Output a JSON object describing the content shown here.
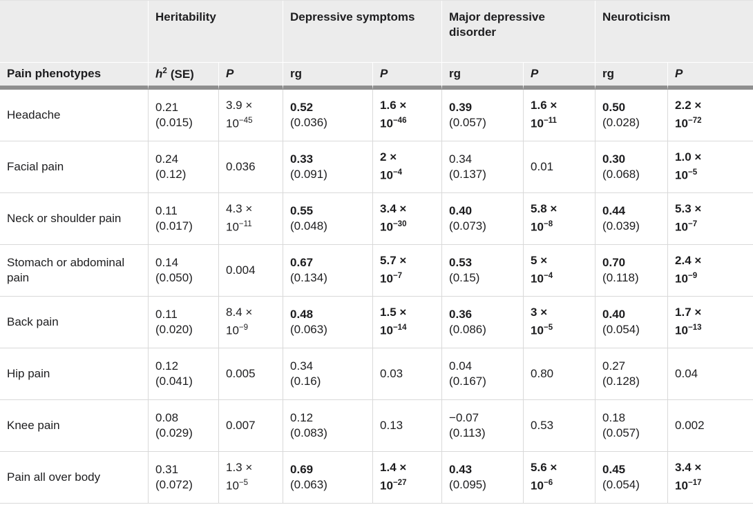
{
  "formatting": {
    "times_symbol": "×",
    "power_base": "10"
  },
  "table": {
    "column_groups": [
      {
        "label": "Heritability"
      },
      {
        "label": "Depressive symptoms"
      },
      {
        "label": "Major depressive disorder"
      },
      {
        "label": "Neuroticism"
      }
    ],
    "header": {
      "phenotype_col": "Pain phenotypes",
      "h2_base": "h",
      "h2_sup": "2",
      "h2_suffix": "(SE)",
      "p_label": "P",
      "rg_label": "rg"
    },
    "rows": [
      {
        "phenotype": "Headache",
        "cells": [
          {
            "type": "est",
            "value": "0.21",
            "se": "(0.015)",
            "bold": false
          },
          {
            "type": "p_sci",
            "mantissa": "3.9",
            "exponent": "−45",
            "bold": false
          },
          {
            "type": "est",
            "value": "0.52",
            "se": "(0.036)",
            "bold": true
          },
          {
            "type": "p_sci",
            "mantissa": "1.6",
            "exponent": "−46",
            "bold": true
          },
          {
            "type": "est",
            "value": "0.39",
            "se": "(0.057)",
            "bold": true
          },
          {
            "type": "p_sci",
            "mantissa": "1.6",
            "exponent": "−11",
            "bold": true
          },
          {
            "type": "est",
            "value": "0.50",
            "se": "(0.028)",
            "bold": true
          },
          {
            "type": "p_sci",
            "mantissa": "2.2",
            "exponent": "−72",
            "bold": true
          }
        ]
      },
      {
        "phenotype": "Facial pain",
        "cells": [
          {
            "type": "est",
            "value": "0.24",
            "se": "(0.12)",
            "bold": false
          },
          {
            "type": "p",
            "value": "0.036",
            "bold": false
          },
          {
            "type": "est",
            "value": "0.33",
            "se": "(0.091)",
            "bold": true
          },
          {
            "type": "p_sci",
            "mantissa": "2",
            "exponent": "−4",
            "bold": true
          },
          {
            "type": "est",
            "value": "0.34",
            "se": "(0.137)",
            "bold": false
          },
          {
            "type": "p",
            "value": "0.01",
            "bold": false
          },
          {
            "type": "est",
            "value": "0.30",
            "se": "(0.068)",
            "bold": true
          },
          {
            "type": "p_sci",
            "mantissa": "1.0",
            "exponent": "−5",
            "bold": true
          }
        ]
      },
      {
        "phenotype": "Neck or shoulder pain",
        "cells": [
          {
            "type": "est",
            "value": "0.11",
            "se": "(0.017)",
            "bold": false
          },
          {
            "type": "p_sci",
            "mantissa": "4.3",
            "exponent": "−11",
            "bold": false
          },
          {
            "type": "est",
            "value": "0.55",
            "se": "(0.048)",
            "bold": true
          },
          {
            "type": "p_sci",
            "mantissa": "3.4",
            "exponent": "−30",
            "bold": true
          },
          {
            "type": "est",
            "value": "0.40",
            "se": "(0.073)",
            "bold": true
          },
          {
            "type": "p_sci",
            "mantissa": "5.8",
            "exponent": "−8",
            "bold": true
          },
          {
            "type": "est",
            "value": "0.44",
            "se": "(0.039)",
            "bold": true
          },
          {
            "type": "p_sci",
            "mantissa": "5.3",
            "exponent": "−7",
            "bold": true
          }
        ]
      },
      {
        "phenotype": "Stomach or abdominal pain",
        "cells": [
          {
            "type": "est",
            "value": "0.14",
            "se": "(0.050)",
            "bold": false
          },
          {
            "type": "p",
            "value": "0.004",
            "bold": false
          },
          {
            "type": "est",
            "value": "0.67",
            "se": "(0.134)",
            "bold": true
          },
          {
            "type": "p_sci",
            "mantissa": "5.7",
            "exponent": "−7",
            "bold": true
          },
          {
            "type": "est",
            "value": "0.53",
            "se": "(0.15)",
            "bold": true
          },
          {
            "type": "p_sci",
            "mantissa": "5",
            "exponent": "−4",
            "bold": true
          },
          {
            "type": "est",
            "value": "0.70",
            "se": "(0.118)",
            "bold": true
          },
          {
            "type": "p_sci",
            "mantissa": "2.4",
            "exponent": "−9",
            "bold": true
          }
        ]
      },
      {
        "phenotype": "Back pain",
        "cells": [
          {
            "type": "est",
            "value": "0.11",
            "se": "(0.020)",
            "bold": false
          },
          {
            "type": "p_sci",
            "mantissa": "8.4",
            "exponent": "−9",
            "bold": false
          },
          {
            "type": "est",
            "value": "0.48",
            "se": "(0.063)",
            "bold": true
          },
          {
            "type": "p_sci",
            "mantissa": "1.5",
            "exponent": "−14",
            "bold": true
          },
          {
            "type": "est",
            "value": "0.36",
            "se": "(0.086)",
            "bold": true
          },
          {
            "type": "p_sci",
            "mantissa": "3",
            "exponent": "−5",
            "bold": true
          },
          {
            "type": "est",
            "value": "0.40",
            "se": "(0.054)",
            "bold": true
          },
          {
            "type": "p_sci",
            "mantissa": "1.7",
            "exponent": "−13",
            "bold": true
          }
        ]
      },
      {
        "phenotype": "Hip pain",
        "cells": [
          {
            "type": "est",
            "value": "0.12",
            "se": "(0.041)",
            "bold": false
          },
          {
            "type": "p",
            "value": "0.005",
            "bold": false
          },
          {
            "type": "est",
            "value": "0.34",
            "se": "(0.16)",
            "bold": false
          },
          {
            "type": "p",
            "value": "0.03",
            "bold": false
          },
          {
            "type": "est",
            "value": "0.04",
            "se": "(0.167)",
            "bold": false
          },
          {
            "type": "p",
            "value": "0.80",
            "bold": false
          },
          {
            "type": "est",
            "value": "0.27",
            "se": "(0.128)",
            "bold": false
          },
          {
            "type": "p",
            "value": "0.04",
            "bold": false
          }
        ]
      },
      {
        "phenotype": "Knee pain",
        "cells": [
          {
            "type": "est",
            "value": "0.08",
            "se": "(0.029)",
            "bold": false
          },
          {
            "type": "p",
            "value": "0.007",
            "bold": false
          },
          {
            "type": "est",
            "value": "0.12",
            "se": "(0.083)",
            "bold": false
          },
          {
            "type": "p",
            "value": "0.13",
            "bold": false
          },
          {
            "type": "est",
            "value": "−0.07",
            "se": "(0.113)",
            "bold": false
          },
          {
            "type": "p",
            "value": "0.53",
            "bold": false
          },
          {
            "type": "est",
            "value": "0.18",
            "se": "(0.057)",
            "bold": false
          },
          {
            "type": "p",
            "value": "0.002",
            "bold": false
          }
        ]
      },
      {
        "phenotype": "Pain all over body",
        "cells": [
          {
            "type": "est",
            "value": "0.31",
            "se": "(0.072)",
            "bold": false
          },
          {
            "type": "p_sci",
            "mantissa": "1.3",
            "exponent": "−5",
            "bold": false
          },
          {
            "type": "est",
            "value": "0.69",
            "se": "(0.063)",
            "bold": true
          },
          {
            "type": "p_sci",
            "mantissa": "1.4",
            "exponent": "−27",
            "bold": true
          },
          {
            "type": "est",
            "value": "0.43",
            "se": "(0.095)",
            "bold": true
          },
          {
            "type": "p_sci",
            "mantissa": "5.6",
            "exponent": "−6",
            "bold": true
          },
          {
            "type": "est",
            "value": "0.45",
            "se": "(0.054)",
            "bold": true
          },
          {
            "type": "p_sci",
            "mantissa": "3.4",
            "exponent": "−17",
            "bold": true
          }
        ]
      }
    ]
  },
  "chart_data": {
    "type": "table",
    "columns": [
      "Pain phenotypes",
      "Heritability h2 (SE)",
      "Heritability P",
      "Depressive symptoms rg (SE)",
      "Depressive symptoms P",
      "Major depressive disorder rg (SE)",
      "Major depressive disorder P",
      "Neuroticism rg (SE)",
      "Neuroticism P"
    ],
    "rows": [
      [
        "Headache",
        "0.21 (0.015)",
        "3.9 × 10^−45",
        "0.52 (0.036)",
        "1.6 × 10^−46",
        "0.39 (0.057)",
        "1.6 × 10^−11",
        "0.50 (0.028)",
        "2.2 × 10^−72"
      ],
      [
        "Facial pain",
        "0.24 (0.12)",
        "0.036",
        "0.33 (0.091)",
        "2 × 10^−4",
        "0.34 (0.137)",
        "0.01",
        "0.30 (0.068)",
        "1.0 × 10^−5"
      ],
      [
        "Neck or shoulder pain",
        "0.11 (0.017)",
        "4.3 × 10^−11",
        "0.55 (0.048)",
        "3.4 × 10^−30",
        "0.40 (0.073)",
        "5.8 × 10^−8",
        "0.44 (0.039)",
        "5.3 × 10^−7"
      ],
      [
        "Stomach or abdominal pain",
        "0.14 (0.050)",
        "0.004",
        "0.67 (0.134)",
        "5.7 × 10^−7",
        "0.53 (0.15)",
        "5 × 10^−4",
        "0.70 (0.118)",
        "2.4 × 10^−9"
      ],
      [
        "Back pain",
        "0.11 (0.020)",
        "8.4 × 10^−9",
        "0.48 (0.063)",
        "1.5 × 10^−14",
        "0.36 (0.086)",
        "3 × 10^−5",
        "0.40 (0.054)",
        "1.7 × 10^−13"
      ],
      [
        "Hip pain",
        "0.12 (0.041)",
        "0.005",
        "0.34 (0.16)",
        "0.03",
        "0.04 (0.167)",
        "0.80",
        "0.27 (0.128)",
        "0.04"
      ],
      [
        "Knee pain",
        "0.08 (0.029)",
        "0.007",
        "0.12 (0.083)",
        "0.13",
        "−0.07 (0.113)",
        "0.53",
        "0.18 (0.057)",
        "0.002"
      ],
      [
        "Pain all over body",
        "0.31 (0.072)",
        "1.3 × 10^−5",
        "0.69 (0.063)",
        "1.4 × 10^−27",
        "0.43 (0.095)",
        "5.6 × 10^−6",
        "0.45 (0.054)",
        "3.4 × 10^−17"
      ]
    ],
    "styling": {
      "header_background": "#ececec",
      "thick_header_rule": "#8f8f8f",
      "grid_line": "#d9d9d9",
      "text_color": "#1d1d1f"
    }
  }
}
